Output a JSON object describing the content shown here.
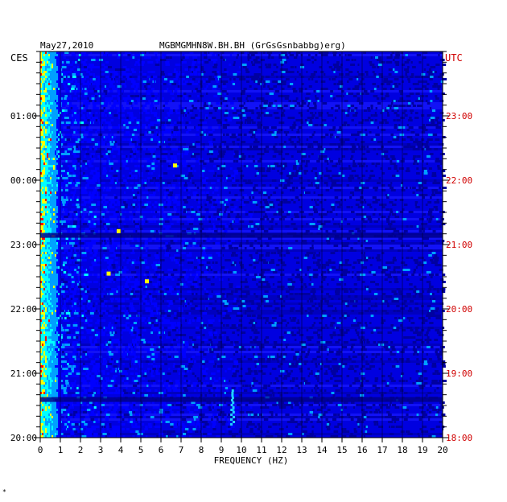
{
  "header": {
    "date": "May27,2010",
    "title": "MGBMGMHN8W.BH.BH (GrGsGsnbabbg)erg)"
  },
  "chart_data": {
    "type": "heatmap",
    "title": "MGBMGMHN8W.BH.BH (GrGsGsnbabbg)erg)",
    "date": "May27,2010",
    "xlabel": "FREQUENCY (HZ)",
    "x_range": [
      0,
      20
    ],
    "x_ticks": [
      "0",
      "1",
      "2",
      "3",
      "4",
      "5",
      "6",
      "7",
      "8",
      "9",
      "10",
      "11",
      "12",
      "13",
      "14",
      "15",
      "16",
      "17",
      "18",
      "19",
      "20"
    ],
    "left_axis": {
      "label": "CES",
      "ticks": [
        "01:00",
        "00:00",
        "23:00",
        "22:00",
        "21:00",
        "20:00"
      ],
      "color": "#000000"
    },
    "right_axis": {
      "label": "UTC",
      "ticks": [
        "23:00",
        "22:00",
        "21:00",
        "20:00",
        "19:00",
        "18:00"
      ],
      "color": "#d00000"
    },
    "time_span_hours": 6,
    "colormap": [
      "#0000a0",
      "#0000ff",
      "#00a0ff",
      "#00ffff",
      "#ffff00",
      "#ff0000"
    ],
    "grid": true,
    "features": {
      "low_frequency_band_hz": [
        0,
        1
      ],
      "line_near_hz": 9.5,
      "line_near_hz_time_window": "20:00–20:40 CES",
      "spot_near_hz": [
        3.8,
        3.3,
        5.2,
        6.6
      ]
    }
  },
  "footnote": "*"
}
